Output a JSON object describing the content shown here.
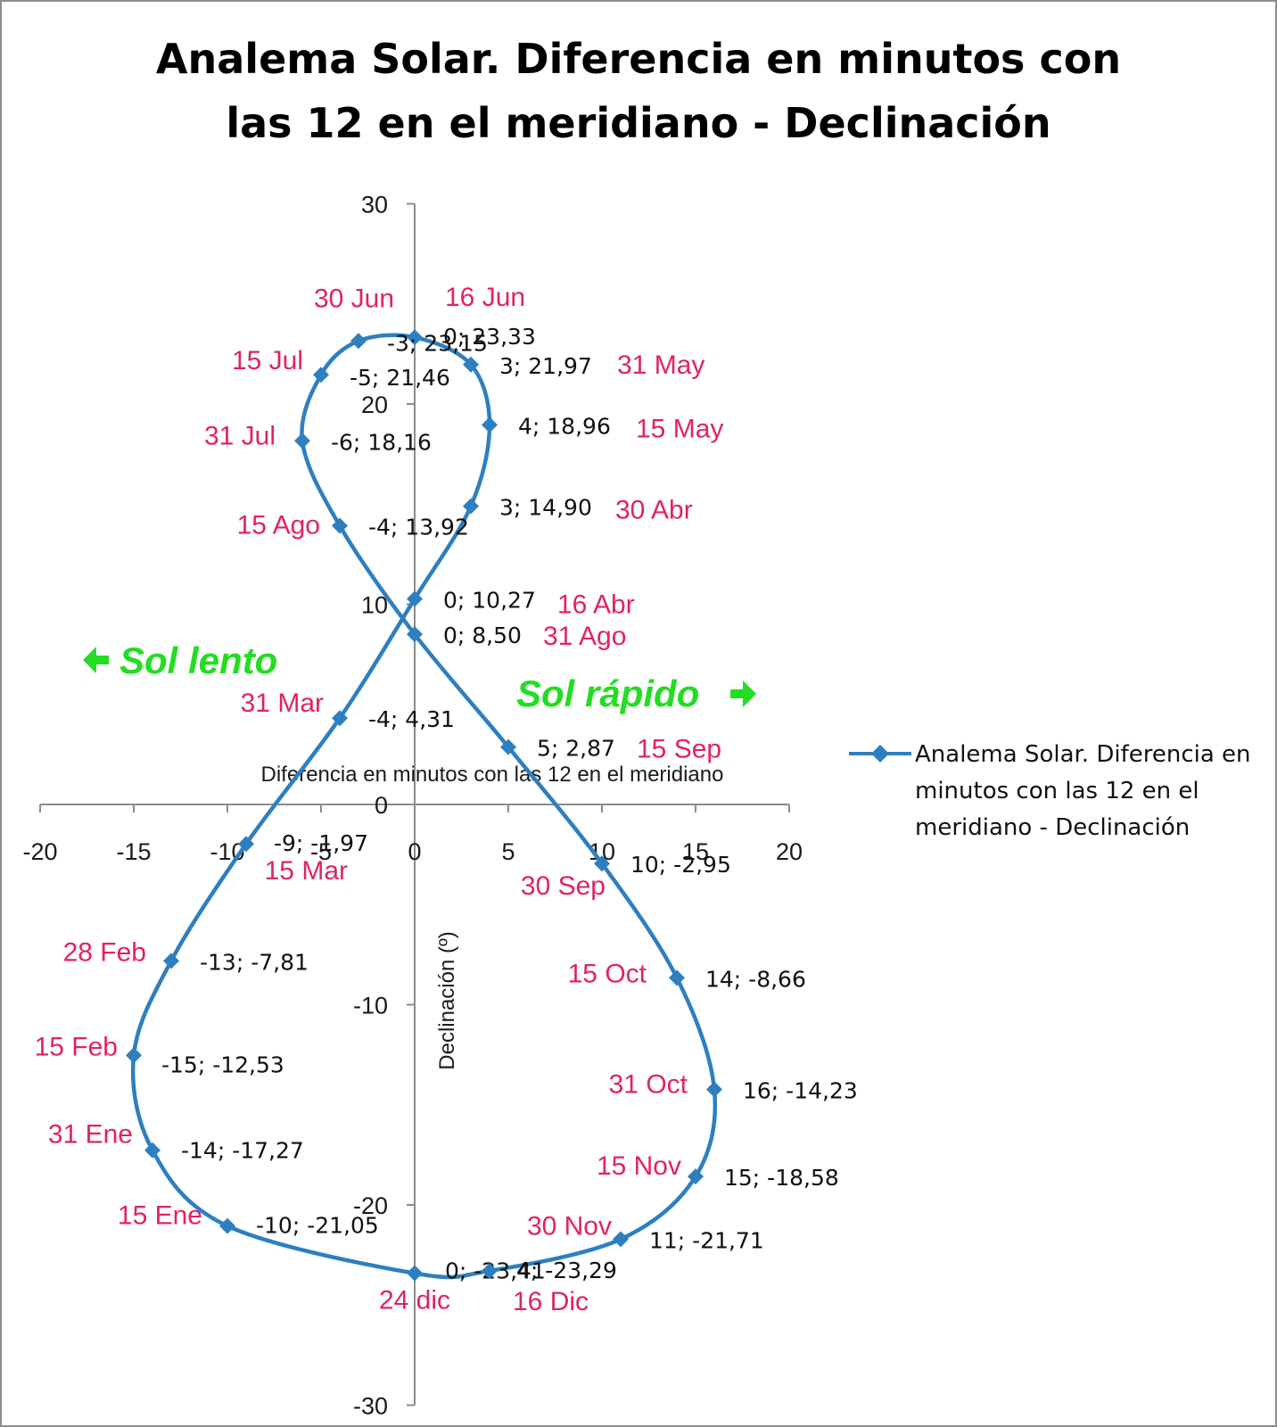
{
  "chart_data": {
    "type": "scatter",
    "title_lines": [
      "Analema Solar. Diferencia en minutos con",
      "las 12 en el meridiano - Declinación"
    ],
    "xlabel": "Diferencia en minutos con las 12 en el meridiano",
    "ylabel": "Declinación (º)",
    "xlim": [
      -20,
      20
    ],
    "ylim": [
      -30,
      30
    ],
    "x_ticks": [
      -20,
      -15,
      -10,
      -5,
      0,
      5,
      10,
      15,
      20
    ],
    "y_ticks": [
      30,
      20,
      10,
      0,
      -10,
      -20,
      -30
    ],
    "line_style": "smoothed line with diamond markers",
    "series_color": "#2e7fbf",
    "date_label_color": "#e0245e",
    "annotation_color": "#22dd22",
    "legend_position": "right",
    "series": [
      {
        "name": "Analema Solar. Diferencia en minutos con las 12 en el meridiano - Declinación",
        "points": [
          {
            "date": "24 dic",
            "x": 0,
            "y": -23.41,
            "label": "0; -23,41"
          },
          {
            "date": "15 Ene",
            "x": -10,
            "y": -21.05,
            "label": "-10; -21,05"
          },
          {
            "date": "31 Ene",
            "x": -14,
            "y": -17.27,
            "label": "-14; -17,27"
          },
          {
            "date": "15 Feb",
            "x": -15,
            "y": -12.53,
            "label": "-15; -12,53"
          },
          {
            "date": "28 Feb",
            "x": -13,
            "y": -7.81,
            "label": "-13; -7,81"
          },
          {
            "date": "15 Mar",
            "x": -9,
            "y": -1.97,
            "label": "-9; -1,97"
          },
          {
            "date": "31 Mar",
            "x": -4,
            "y": 4.31,
            "label": "-4; 4,31"
          },
          {
            "date": "16 Abr",
            "x": 0,
            "y": 10.27,
            "label": "0; 10,27"
          },
          {
            "date": "30 Abr",
            "x": 3,
            "y": 14.9,
            "label": "3; 14,90"
          },
          {
            "date": "15 May",
            "x": 4,
            "y": 18.96,
            "label": "4; 18,96"
          },
          {
            "date": "31 May",
            "x": 3,
            "y": 21.97,
            "label": "3; 21,97"
          },
          {
            "date": "16 Jun",
            "x": 0,
            "y": 23.33,
            "label": "0; 23,33"
          },
          {
            "date": "30 Jun",
            "x": -3,
            "y": 23.15,
            "label": "-3; 23,15"
          },
          {
            "date": "15 Jul",
            "x": -5,
            "y": 21.46,
            "label": "-5; 21,46"
          },
          {
            "date": "31 Jul",
            "x": -6,
            "y": 18.16,
            "label": "-6; 18,16"
          },
          {
            "date": "15 Ago",
            "x": -4,
            "y": 13.92,
            "label": "-4; 13,92"
          },
          {
            "date": "31 Ago",
            "x": 0,
            "y": 8.5,
            "label": "0; 8,50"
          },
          {
            "date": "15 Sep",
            "x": 5,
            "y": 2.87,
            "label": "5; 2,87"
          },
          {
            "date": "30 Sep",
            "x": 10,
            "y": -2.95,
            "label": "10; -2,95"
          },
          {
            "date": "15 Oct",
            "x": 14,
            "y": -8.66,
            "label": "14; -8,66"
          },
          {
            "date": "31 Oct",
            "x": 16,
            "y": -14.23,
            "label": "16; -14,23"
          },
          {
            "date": "15 Nov",
            "x": 15,
            "y": -18.58,
            "label": "15; -18,58"
          },
          {
            "date": "30 Nov",
            "x": 11,
            "y": -21.71,
            "label": "11; -21,71"
          },
          {
            "date": "16 Dic",
            "x": 4,
            "y": -23.29,
            "label": "4; -23,29"
          }
        ]
      }
    ],
    "annotations": [
      {
        "text": "Sol lento",
        "arrow": "left"
      },
      {
        "text": "Sol rápido",
        "arrow": "right"
      }
    ]
  }
}
